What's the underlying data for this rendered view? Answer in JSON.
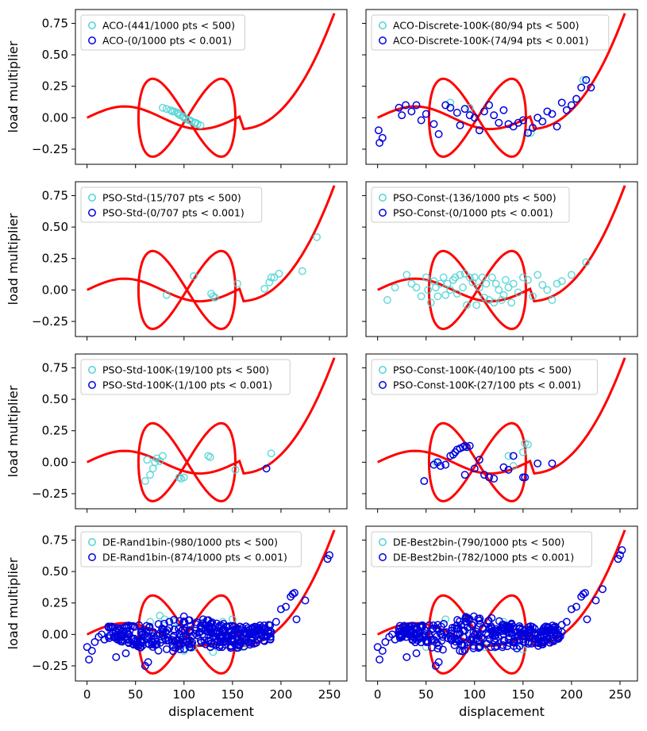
{
  "colors": {
    "curve": "#ff0000",
    "cyan": "#4fd3d3",
    "blue": "#0000dd",
    "frame": "#000000"
  },
  "shared": {
    "xlabel": "displacement",
    "ylabel": "load multiplier",
    "xlim": [
      -12,
      268
    ],
    "ylim": [
      -0.37,
      0.86
    ],
    "xticks": [
      0,
      50,
      100,
      150,
      200,
      250
    ],
    "xtick_labels": [
      "0",
      "50",
      "100",
      "150",
      "200",
      "250"
    ],
    "yticks": [
      -0.25,
      0,
      0.25,
      0.5,
      0.75
    ],
    "ytick_labels": [
      "−0.25",
      "0.00",
      "0.25",
      "0.50",
      "0.75"
    ]
  },
  "chart_data": [
    {
      "type": "scatter",
      "title": "",
      "legend": [
        "ACO-(441/1000 pts < 500)",
        "ACO-(0/1000 pts < 0.001)"
      ],
      "series": [
        {
          "name": "ACO-(441/1000 pts < 500)",
          "color": "cyan",
          "x": [
            78,
            82,
            86,
            90,
            93,
            96,
            99,
            102,
            105,
            108,
            111,
            114,
            117,
            94,
            100,
            106,
            88,
            112
          ],
          "y": [
            0.08,
            0.07,
            0.06,
            0.05,
            0.04,
            0.02,
            0.01,
            -0.01,
            -0.02,
            -0.03,
            -0.04,
            -0.05,
            -0.06,
            0.03,
            0.0,
            -0.02,
            0.05,
            -0.04
          ]
        },
        {
          "name": "ACO-(0/1000 pts < 0.001)",
          "color": "blue",
          "x": [],
          "y": []
        }
      ]
    },
    {
      "type": "scatter",
      "title": "",
      "legend": [
        "ACO-Discrete-100K-(80/94 pts < 500)",
        "ACO-Discrete-100K-(74/94 pts < 0.001)"
      ],
      "series": [
        {
          "name": "ACO-Discrete-100K-(80/94 pts < 500)",
          "color": "cyan",
          "x": [
            75,
            95,
            158,
            205,
            212
          ],
          "y": [
            0.12,
            0.08,
            -0.12,
            0.15,
            0.3
          ]
        },
        {
          "name": "ACO-Discrete-100K-(74/94 pts < 0.001)",
          "color": "blue",
          "x": [
            1,
            2,
            5,
            22,
            25,
            29,
            35,
            40,
            45,
            50,
            58,
            63,
            70,
            75,
            82,
            85,
            90,
            95,
            100,
            105,
            110,
            115,
            120,
            125,
            130,
            135,
            140,
            145,
            150,
            155,
            160,
            165,
            170,
            175,
            180,
            185,
            190,
            195,
            200,
            205,
            210,
            215,
            220
          ],
          "y": [
            -0.1,
            -0.2,
            -0.16,
            0.08,
            0.02,
            0.1,
            0.05,
            0.1,
            -0.02,
            0.03,
            -0.05,
            -0.13,
            0.1,
            0.08,
            0.04,
            -0.06,
            0.07,
            0.02,
            0.0,
            -0.1,
            0.05,
            0.1,
            0.02,
            -0.04,
            0.06,
            -0.05,
            -0.07,
            -0.04,
            -0.02,
            -0.12,
            -0.08,
            0.0,
            -0.03,
            0.05,
            0.03,
            -0.07,
            0.12,
            0.06,
            0.1,
            0.15,
            0.24,
            0.3,
            0.24
          ]
        }
      ]
    },
    {
      "type": "scatter",
      "title": "",
      "legend": [
        "PSO-Std-(15/707 pts < 500)",
        "PSO-Std-(0/707 pts < 0.001)"
      ],
      "series": [
        {
          "name": "PSO-Std-(15/707 pts < 500)",
          "color": "cyan",
          "x": [
            82,
            110,
            128,
            130,
            132,
            155,
            183,
            188,
            190,
            193,
            198,
            222,
            237
          ],
          "y": [
            -0.04,
            0.11,
            -0.03,
            -0.05,
            -0.06,
            0.05,
            0.01,
            0.06,
            0.1,
            0.1,
            0.13,
            0.15,
            0.42
          ]
        },
        {
          "name": "PSO-Std-(0/707 pts < 0.001)",
          "color": "blue",
          "x": [],
          "y": []
        }
      ]
    },
    {
      "type": "scatter",
      "title": "",
      "legend": [
        "PSO-Const-(136/1000 pts < 500)",
        "PSO-Const-(0/1000 pts < 0.001)"
      ],
      "series": [
        {
          "name": "PSO-Const-(136/1000 pts < 500)",
          "color": "cyan",
          "x": [
            10,
            18,
            30,
            35,
            40,
            45,
            50,
            52,
            55,
            58,
            60,
            62,
            65,
            68,
            70,
            72,
            75,
            78,
            80,
            82,
            85,
            88,
            90,
            92,
            95,
            98,
            100,
            102,
            105,
            108,
            110,
            112,
            115,
            118,
            120,
            122,
            125,
            128,
            130,
            132,
            135,
            138,
            140,
            145,
            150,
            155,
            160,
            165,
            170,
            175,
            180,
            185,
            190,
            200,
            215
          ],
          "y": [
            -0.08,
            0.02,
            0.12,
            0.05,
            0.02,
            -0.05,
            0.1,
            0.0,
            -0.1,
            0.07,
            0.02,
            -0.05,
            0.05,
            0.1,
            -0.04,
            0.05,
            0.0,
            0.08,
            0.1,
            -0.03,
            0.12,
            0.02,
            0.13,
            -0.12,
            0.1,
            0.06,
            0.1,
            -0.12,
            0.02,
            0.1,
            -0.06,
            0.05,
            -0.08,
            0.1,
            -0.1,
            0.05,
            0.0,
            -0.08,
            -0.04,
            0.08,
            0.02,
            -0.1,
            0.05,
            -0.02,
            0.1,
            0.08,
            -0.05,
            0.12,
            0.04,
            0.0,
            -0.08,
            0.05,
            0.07,
            0.12,
            0.22
          ]
        },
        {
          "name": "PSO-Const-(0/1000 pts < 0.001)",
          "color": "blue",
          "x": [],
          "y": []
        }
      ]
    },
    {
      "type": "scatter",
      "title": "",
      "legend": [
        "PSO-Std-100K-(19/100 pts < 500)",
        "PSO-Std-100K-(1/100 pts < 0.001)"
      ],
      "series": [
        {
          "name": "PSO-Std-100K-(19/100 pts < 500)",
          "color": "cyan",
          "x": [
            60,
            62,
            65,
            68,
            70,
            72,
            75,
            78,
            95,
            97,
            100,
            125,
            127,
            153,
            190
          ],
          "y": [
            -0.15,
            0.02,
            -0.1,
            -0.05,
            0.0,
            0.03,
            0.01,
            0.05,
            -0.12,
            -0.13,
            -0.12,
            0.05,
            0.04,
            -0.06,
            0.07
          ]
        },
        {
          "name": "PSO-Std-100K-(1/100 pts < 0.001)",
          "color": "blue",
          "x": [
            185
          ],
          "y": [
            -0.05
          ]
        }
      ]
    },
    {
      "type": "scatter",
      "title": "",
      "legend": [
        "PSO-Const-100K-(40/100 pts < 500)",
        "PSO-Const-100K-(27/100 pts < 0.001)"
      ],
      "series": [
        {
          "name": "PSO-Const-100K-(40/100 pts < 500)",
          "color": "cyan",
          "x": [
            48,
            60,
            70,
            135,
            140,
            150,
            152,
            155
          ],
          "y": [
            -0.15,
            0.0,
            -0.02,
            0.05,
            -0.03,
            0.08,
            0.15,
            0.14
          ]
        },
        {
          "name": "PSO-Const-100K-(27/100 pts < 0.001)",
          "color": "blue",
          "x": [
            48,
            58,
            62,
            65,
            70,
            75,
            78,
            80,
            82,
            85,
            88,
            90,
            92,
            95,
            100,
            110,
            115,
            120,
            130,
            135,
            140,
            150,
            152,
            165,
            180,
            90,
            105
          ],
          "y": [
            -0.15,
            -0.02,
            0.0,
            -0.03,
            -0.02,
            0.05,
            0.06,
            0.08,
            0.1,
            0.11,
            0.12,
            0.13,
            0.12,
            0.13,
            -0.05,
            -0.1,
            -0.12,
            -0.13,
            -0.04,
            -0.06,
            0.05,
            -0.12,
            -0.12,
            -0.01,
            -0.01,
            -0.1,
            0.02
          ]
        }
      ]
    },
    {
      "type": "scatter",
      "title": "",
      "legend": [
        "DE-Rand1bin-(980/1000 pts < 500)",
        "DE-Rand1bin-(874/1000 pts < 0.001)"
      ],
      "series": [
        {
          "name": "DE-Rand1bin-(980/1000 pts < 500)",
          "color": "cyan",
          "x": [
            40,
            50,
            60,
            65,
            75,
            80,
            90,
            100,
            110,
            120,
            130,
            140,
            150,
            160,
            170
          ],
          "y": [
            -0.15,
            -0.05,
            -0.25,
            0.1,
            0.15,
            0.12,
            0.1,
            -0.13,
            -0.1,
            0.08,
            -0.14,
            0.1,
            0.12,
            -0.1,
            0.0
          ]
        },
        {
          "name": "DE-Rand1bin-(874/1000 pts < 0.001)",
          "color": "blue",
          "x": [],
          "y": []
        }
      ]
    },
    {
      "type": "scatter",
      "title": "",
      "legend": [
        "DE-Best2bin-(790/1000 pts < 500)",
        "DE-Best2bin-(782/1000 pts < 0.001)"
      ],
      "series": [
        {
          "name": "DE-Best2bin-(790/1000 pts < 500)",
          "color": "cyan",
          "x": [
            50,
            70,
            90,
            110,
            130,
            150
          ],
          "y": [
            -0.1,
            0.12,
            0.1,
            -0.1,
            0.1,
            -0.12
          ]
        },
        {
          "name": "DE-Best2bin-(782/1000 pts < 0.001)",
          "color": "blue",
          "x": [],
          "y": []
        }
      ]
    }
  ]
}
